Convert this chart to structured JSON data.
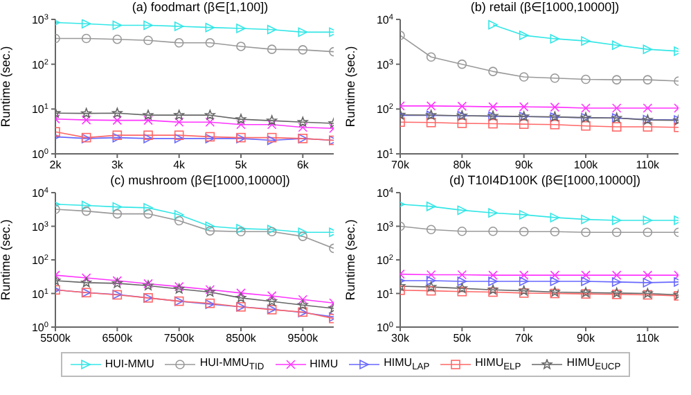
{
  "chart_data": [
    {
      "type": "line",
      "title": "(a) foodmart (β∈[1,100])",
      "ylabel": "Runtime (sec.)",
      "log": "y",
      "legend": "bottom",
      "x": [
        2000,
        2500,
        3000,
        3500,
        4000,
        4500,
        5000,
        5500,
        6000,
        6500
      ],
      "xlim": [
        2000,
        6500
      ],
      "xticks": [
        {
          "value": 2000,
          "label": "2k"
        },
        {
          "value": 3000,
          "label": "3k"
        },
        {
          "value": 4000,
          "label": "4k"
        },
        {
          "value": 5000,
          "label": "5k"
        },
        {
          "value": 6000,
          "label": "6k"
        }
      ],
      "ylim": [
        1,
        1000
      ],
      "yticks": [
        {
          "value": 1,
          "label": "10$^{0}$"
        },
        {
          "value": 10,
          "label": "10$^{1}$"
        },
        {
          "value": 100,
          "label": "10$^{2}$"
        },
        {
          "value": 1000,
          "label": "10$^{3}$"
        }
      ],
      "series": [
        {
          "name": "HUI-MMU",
          "color": "#33e6e6",
          "marker": "triangle",
          "values": [
            850,
            800,
            740,
            740,
            700,
            660,
            630,
            590,
            520,
            520
          ]
        },
        {
          "name": "HUI-MMU$_{TID}$",
          "color": "#999999",
          "marker": "circle",
          "values": [
            376,
            376,
            360,
            340,
            300,
            300,
            250,
            215,
            210,
            190
          ]
        },
        {
          "name": "HIMU",
          "color": "#ff33ff",
          "marker": "cross",
          "values": [
            6,
            5.7,
            5.6,
            5.6,
            5.1,
            5.1,
            4.5,
            4.5,
            3.9,
            3.7
          ]
        },
        {
          "name": "HIMU$_{LAP}$",
          "color": "#6666ff",
          "marker": "triangle",
          "values": [
            2.4,
            2.2,
            2.3,
            2.2,
            2.2,
            2.2,
            2.2,
            2,
            2.2,
            2
          ]
        },
        {
          "name": "HIMU$_{ELP}$",
          "color": "#ff6666",
          "marker": "square",
          "values": [
            3.1,
            2.3,
            2.6,
            2.6,
            2.6,
            2.4,
            2.3,
            2.3,
            2.2,
            2
          ]
        },
        {
          "name": "HIMU$_{EUCP}$",
          "color": "#666666",
          "marker": "star",
          "values": [
            8.1,
            8,
            8.1,
            7.3,
            7.3,
            7.3,
            5.9,
            5.5,
            5.1,
            4.8
          ]
        }
      ]
    },
    {
      "type": "line",
      "title": "(b) retail (β∈[1000,10000])",
      "ylabel": "Runtime (sec.)",
      "log": "y",
      "x": [
        70000,
        75000,
        80000,
        85000,
        90000,
        95000,
        100000,
        105000,
        110000,
        115000
      ],
      "xlim": [
        70000,
        115000
      ],
      "xticks": [
        {
          "value": 70000,
          "label": "70k"
        },
        {
          "value": 80000,
          "label": "80k"
        },
        {
          "value": 90000,
          "label": "90k"
        },
        {
          "value": 100000,
          "label": "100k"
        },
        {
          "value": 110000,
          "label": "110k"
        }
      ],
      "ylim": [
        10,
        10000
      ],
      "yticks": [
        {
          "value": 10,
          "label": "10$^{1}$"
        },
        {
          "value": 100,
          "label": "10$^{2}$"
        },
        {
          "value": 1000,
          "label": "10$^{3}$"
        },
        {
          "value": 10000,
          "label": "10$^{4}$"
        }
      ],
      "series": [
        {
          "color": "#33e6e6",
          "marker": "triangle",
          "values": [
            null,
            null,
            null,
            7600,
            4400,
            3700,
            3300,
            2650,
            2150,
            1950
          ]
        },
        {
          "color": "#999999",
          "marker": "circle",
          "values": [
            4400,
            1450,
            1000,
            690,
            520,
            490,
            460,
            450,
            450,
            420
          ]
        },
        {
          "color": "#ff33ff",
          "marker": "cross",
          "values": [
            117,
            117,
            115,
            112,
            112,
            110,
            105,
            105,
            105,
            105
          ]
        },
        {
          "color": "#6666ff",
          "marker": "triangle",
          "values": [
            72,
            72,
            71,
            69,
            68,
            66,
            64,
            63,
            58,
            57
          ]
        },
        {
          "color": "#ff6666",
          "marker": "square",
          "values": [
            51,
            50,
            48,
            47,
            46,
            45,
            42,
            40,
            40,
            39
          ]
        },
        {
          "color": "#666666",
          "marker": "star",
          "values": [
            74,
            73,
            71,
            70,
            68,
            67,
            64,
            63,
            57,
            56
          ]
        }
      ]
    },
    {
      "type": "line",
      "title": "(c) mushroom (β∈[1000,10000])",
      "ylabel": "Runtime (sec.)",
      "log": "y",
      "x": [
        5500000,
        6000000,
        6500000,
        7000000,
        7500000,
        8000000,
        8500000,
        9000000,
        9500000,
        10000000
      ],
      "xlim": [
        5500000,
        10000000
      ],
      "xticks": [
        {
          "value": 5500000,
          "label": "5500k"
        },
        {
          "value": 6500000,
          "label": "6500k"
        },
        {
          "value": 7500000,
          "label": "7500k"
        },
        {
          "value": 8500000,
          "label": "8500k"
        },
        {
          "value": 9500000,
          "label": "9500k"
        }
      ],
      "ylim": [
        1,
        10000
      ],
      "yticks": [
        {
          "value": 1,
          "label": "10$^{0}$"
        },
        {
          "value": 10,
          "label": "10$^{1}$"
        },
        {
          "value": 100,
          "label": "10$^{2}$"
        },
        {
          "value": 1000,
          "label": "10$^{3}$"
        },
        {
          "value": 10000,
          "label": "10$^{4}$"
        }
      ],
      "series": [
        {
          "color": "#33e6e6",
          "marker": "triangle",
          "values": [
            4500,
            4150,
            3760,
            3540,
            2200,
            1000,
            850,
            800,
            660,
            660
          ]
        },
        {
          "color": "#999999",
          "marker": "circle",
          "values": [
            3200,
            2830,
            2340,
            2340,
            1460,
            730,
            690,
            690,
            500,
            220
          ]
        },
        {
          "color": "#ff33ff",
          "marker": "cross",
          "values": [
            35,
            29,
            24,
            19.5,
            16,
            13,
            10.3,
            8.5,
            6.6,
            5.2
          ]
        },
        {
          "color": "#6666ff",
          "marker": "triangle",
          "values": [
            12.8,
            10.6,
            9.3,
            7.4,
            5.9,
            4.8,
            4,
            3.4,
            2.7,
            2
          ]
        },
        {
          "color": "#ff6666",
          "marker": "square",
          "values": [
            12.8,
            10.6,
            9.1,
            7.4,
            5.9,
            5.1,
            4,
            3.3,
            2.8,
            1.8
          ]
        },
        {
          "color": "#666666",
          "marker": "star",
          "values": [
            24,
            21,
            20,
            17,
            13.6,
            11,
            7.4,
            5.8,
            4.5,
            3.6
          ]
        }
      ]
    },
    {
      "type": "line",
      "title": "(d) T10I4D100K (β∈[1000,10000])",
      "ylabel": "Runtime (sec.)",
      "log": "y",
      "x": [
        30000,
        40000,
        50000,
        60000,
        70000,
        80000,
        90000,
        100000,
        110000,
        120000
      ],
      "xlim": [
        30000,
        120000
      ],
      "xticks": [
        {
          "value": 30000,
          "label": "30k"
        },
        {
          "value": 50000,
          "label": "50k"
        },
        {
          "value": 70000,
          "label": "70k"
        },
        {
          "value": 90000,
          "label": "90k"
        },
        {
          "value": 110000,
          "label": "110k"
        }
      ],
      "ylim": [
        1,
        10000
      ],
      "yticks": [
        {
          "value": 1,
          "label": "10$^{0}$"
        },
        {
          "value": 10,
          "label": "10$^{1}$"
        },
        {
          "value": 100,
          "label": "10$^{2}$"
        },
        {
          "value": 1000,
          "label": "10$^{3}$"
        },
        {
          "value": 10000,
          "label": "10$^{4}$"
        }
      ],
      "series": [
        {
          "color": "#33e6e6",
          "marker": "triangle",
          "values": [
            4500,
            3900,
            3000,
            2500,
            2200,
            1820,
            1600,
            1500,
            1500,
            1500
          ]
        },
        {
          "color": "#999999",
          "marker": "circle",
          "values": [
            1000,
            800,
            710,
            710,
            690,
            690,
            660,
            660,
            660,
            660
          ]
        },
        {
          "color": "#ff33ff",
          "marker": "cross",
          "values": [
            37.6,
            36,
            36,
            35,
            35,
            35,
            35,
            35,
            35,
            35
          ]
        },
        {
          "color": "#6666ff",
          "marker": "triangle",
          "values": [
            24,
            24,
            23,
            23,
            23,
            23,
            23,
            22,
            21,
            22
          ]
        },
        {
          "color": "#ff6666",
          "marker": "square",
          "values": [
            12.5,
            12,
            11.4,
            11,
            10.3,
            10,
            9.7,
            9.4,
            9.1,
            8.5
          ]
        },
        {
          "color": "#666666",
          "marker": "star",
          "values": [
            16.5,
            15.6,
            14.2,
            12.8,
            12,
            11,
            10.6,
            10.3,
            10,
            9.1
          ]
        }
      ]
    }
  ]
}
